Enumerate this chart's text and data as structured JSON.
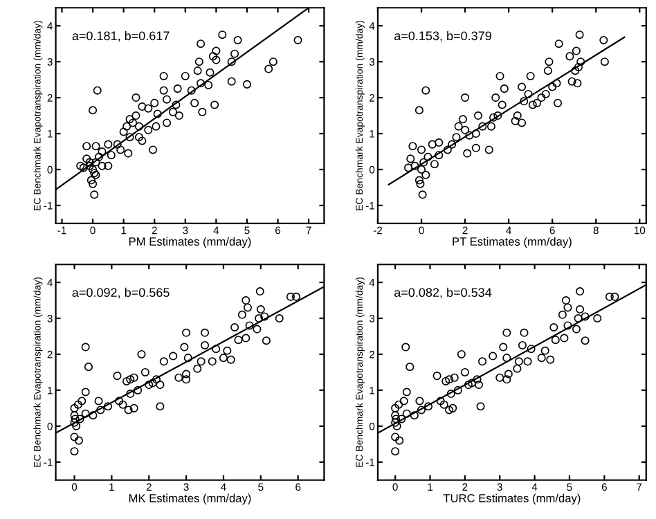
{
  "chart_data": [
    {
      "type": "scatter",
      "xlabel": "PM Estimates (mm/day)",
      "ylabel": "EC Benchmark Evapotranspiration (mm/day)",
      "annotations": [
        "a=0.181, b=0.617"
      ],
      "xlim": [
        -1.2,
        7.5
      ],
      "ylim": [
        -1.5,
        4.5
      ],
      "xticks": [
        -1,
        0,
        1,
        2,
        3,
        4,
        5,
        6,
        7
      ],
      "yticks": [
        -1,
        0,
        1,
        2,
        3,
        4
      ],
      "grid": false,
      "series": [
        {
          "color": "#000000",
          "marker": "circle",
          "x": [
            6.65,
            5.85,
            5.7,
            5.0,
            4.5,
            4.7,
            4.6,
            4.5,
            4.2,
            4.0,
            4.0,
            3.9,
            3.95,
            3.5,
            3.45,
            3.4,
            3.5,
            3.8,
            3.75,
            3.55,
            3.0,
            3.2,
            3.3,
            2.75,
            2.3,
            2.3,
            2.4,
            2.7,
            2.6,
            2.8,
            2.0,
            2.1,
            1.95,
            2.05,
            2.4,
            1.8,
            1.6,
            1.4,
            1.4,
            1.5,
            1.3,
            1.2,
            1.1,
            1.0,
            1.15,
            1.2,
            1.5,
            1.6,
            1.8,
            0.8,
            0.9,
            0.5,
            0.5,
            0.6,
            0.3,
            0.15,
            0.0,
            0.05,
            0.0,
            -0.05,
            0.1,
            -0.2,
            -0.2,
            -0.3,
            -0.1,
            0.0,
            0.1,
            -0.1,
            0.2,
            0.05,
            -0.4,
            0.1,
            0.3
          ],
          "values": [
            3.6,
            3.0,
            2.8,
            2.37,
            2.45,
            3.6,
            3.22,
            3.0,
            3.75,
            3.3,
            3.05,
            3.15,
            1.8,
            3.5,
            3.0,
            2.75,
            2.4,
            2.7,
            2.35,
            1.6,
            2.6,
            2.2,
            1.85,
            2.25,
            2.6,
            2.2,
            1.95,
            1.8,
            1.6,
            1.5,
            1.85,
            1.55,
            0.55,
            1.2,
            1.3,
            1.7,
            1.75,
            1.5,
            2.0,
            1.2,
            1.3,
            1.4,
            1.2,
            1.05,
            0.45,
            0.9,
            0.9,
            0.8,
            1.1,
            0.7,
            0.55,
            0.7,
            0.1,
            0.4,
            0.5,
            2.2,
            1.65,
            -0.7,
            -0.4,
            -0.3,
            0.65,
            0.65,
            0.3,
            0.05,
            0.1,
            0.0,
            0.2,
            0.2,
            0.35,
            -0.1,
            0.1,
            -0.15,
            0.1
          ]
        },
        {
          "type": "line",
          "color": "#000000",
          "x": [
            -1.2,
            7.0
          ],
          "values": [
            -0.56,
            4.5
          ]
        }
      ]
    },
    {
      "type": "scatter",
      "xlabel": "PT Estimates (mm/day)",
      "ylabel": "EC Benchmark Evapotranspiration (mm/day)",
      "annotations": [
        "a=0.153, b=0.379"
      ],
      "xlim": [
        -2,
        10.3
      ],
      "ylim": [
        -1.5,
        4.5
      ],
      "xticks": [
        -2,
        0,
        2,
        4,
        6,
        8,
        10
      ],
      "yticks": [
        -1,
        0,
        1,
        2,
        3,
        4
      ],
      "grid": false,
      "series": [
        {
          "color": "#000000",
          "marker": "circle",
          "x": [
            8.35,
            8.4,
            7.25,
            7.1,
            7.2,
            7.3,
            7.05,
            6.9,
            7.15,
            6.8,
            6.3,
            6.2,
            6.25,
            5.85,
            5.8,
            5.7,
            6.0,
            5.0,
            4.6,
            4.9,
            5.1,
            5.5,
            5.3,
            4.6,
            4.4,
            4.3,
            4.7,
            3.6,
            3.8,
            3.4,
            3.7,
            3.5,
            3.3,
            3.2,
            3.1,
            2.6,
            2.8,
            2.5,
            2.0,
            1.9,
            2.1,
            2.0,
            1.7,
            1.6,
            2.2,
            2.5,
            1.4,
            1.2,
            0.8,
            0.5,
            0.8,
            0.6,
            0.2,
            -0.1,
            0.05,
            -0.05,
            -0.1,
            -0.4,
            0.0,
            -0.5,
            -0.3,
            0.0,
            0.1,
            -0.6,
            0.2,
            0.3
          ],
          "values": [
            3.6,
            3.0,
            3.75,
            3.3,
            2.85,
            3.0,
            2.75,
            2.45,
            2.4,
            3.15,
            3.5,
            2.4,
            1.85,
            3.0,
            2.75,
            2.1,
            2.3,
            2.6,
            2.3,
            2.1,
            1.8,
            2.0,
            1.85,
            1.3,
            1.5,
            1.35,
            1.9,
            2.6,
            2.25,
            2.0,
            1.8,
            1.5,
            1.45,
            1.2,
            0.55,
            1.5,
            1.2,
            1.0,
            2.0,
            1.4,
            0.45,
            1.1,
            1.2,
            0.9,
            0.95,
            0.6,
            0.7,
            0.55,
            0.75,
            0.7,
            0.4,
            0.15,
            2.2,
            1.65,
            -0.7,
            -0.4,
            -0.3,
            0.65,
            0.55,
            0.3,
            0.1,
            0.0,
            0.2,
            0.05,
            -0.15,
            0.35
          ]
        },
        {
          "type": "line",
          "color": "#000000",
          "x": [
            -1.5,
            9.3
          ],
          "values": [
            -0.42,
            3.68
          ]
        }
      ]
    },
    {
      "type": "scatter",
      "xlabel": "MK Estimates (mm/day)",
      "ylabel": "EC Benchmark Evapotranspiration (mm/day)",
      "annotations": [
        "a=0.092, b=0.565"
      ],
      "xlim": [
        -0.5,
        6.7
      ],
      "ylim": [
        -1.5,
        4.5
      ],
      "xticks": [
        0,
        1,
        2,
        3,
        4,
        5,
        6
      ],
      "yticks": [
        -1,
        0,
        1,
        2,
        3,
        4
      ],
      "grid": false,
      "series": [
        {
          "color": "#000000",
          "marker": "circle",
          "x": [
            5.95,
            5.8,
            5.5,
            5.15,
            5.1,
            4.98,
            5.0,
            4.95,
            4.9,
            4.6,
            4.65,
            4.5,
            4.7,
            4.6,
            4.4,
            4.3,
            4.2,
            4.0,
            4.1,
            3.8,
            3.5,
            3.5,
            3.4,
            3.3,
            3.7,
            3.0,
            3.05,
            2.95,
            3.0,
            3.0,
            2.8,
            2.65,
            2.4,
            2.3,
            2.2,
            2.3,
            2.1,
            2.0,
            1.8,
            1.9,
            1.6,
            1.5,
            1.4,
            1.15,
            1.2,
            1.5,
            1.6,
            1.45,
            1.3,
            1.7,
            0.9,
            0.65,
            0.7,
            0.5,
            0.3,
            0.38,
            0.3,
            0.2,
            0.3,
            0.15,
            0.0,
            0.12,
            0.0,
            0.0,
            0.0,
            0.0,
            0.05,
            0.02,
            0.1
          ],
          "values": [
            3.6,
            3.6,
            3.0,
            2.38,
            3.05,
            3.75,
            3.25,
            3.0,
            2.7,
            3.5,
            3.3,
            3.1,
            2.8,
            2.45,
            2.4,
            2.75,
            1.85,
            1.9,
            2.1,
            2.15,
            2.6,
            2.25,
            1.8,
            1.6,
            1.8,
            2.6,
            1.9,
            2.2,
            1.3,
            1.45,
            1.35,
            1.95,
            1.8,
            0.55,
            1.3,
            1.15,
            1.2,
            1.15,
            2.0,
            1.5,
            1.35,
            1.3,
            1.25,
            1.4,
            0.7,
            0.9,
            0.5,
            0.45,
            0.6,
            1.0,
            0.55,
            0.7,
            0.45,
            0.3,
            2.2,
            1.65,
            0.95,
            0.7,
            0.35,
            0.2,
            -0.7,
            -0.4,
            -0.3,
            0.5,
            0.3,
            0.1,
            0.0,
            0.2,
            0.6
          ]
        },
        {
          "type": "line",
          "color": "#000000",
          "x": [
            -0.5,
            6.7
          ],
          "values": [
            -0.19,
            3.88
          ]
        }
      ]
    },
    {
      "type": "scatter",
      "xlabel": "TURC Estimates (mm/day)",
      "ylabel": "EC Benchmark Evapotranspiration (mm/day)",
      "annotations": [
        "a=0.082, b=0.534"
      ],
      "xlim": [
        -0.5,
        7.2
      ],
      "ylim": [
        -1.5,
        4.5
      ],
      "xticks": [
        0,
        1,
        2,
        3,
        4,
        5,
        6,
        7
      ],
      "yticks": [
        -1,
        0,
        1,
        2,
        3,
        4
      ],
      "grid": false,
      "series": [
        {
          "color": "#000000",
          "marker": "circle",
          "x": [
            6.3,
            6.15,
            5.8,
            5.45,
            5.45,
            5.3,
            5.3,
            5.25,
            5.2,
            4.9,
            4.95,
            4.8,
            4.95,
            4.85,
            4.6,
            4.55,
            4.45,
            4.2,
            4.3,
            3.9,
            3.7,
            3.65,
            3.55,
            3.5,
            3.8,
            3.2,
            3.2,
            3.1,
            3.2,
            3.25,
            3.0,
            2.8,
            2.5,
            2.45,
            2.35,
            2.4,
            2.2,
            2.1,
            1.9,
            2.0,
            1.7,
            1.55,
            1.45,
            1.2,
            1.3,
            1.6,
            1.65,
            1.55,
            1.4,
            1.8,
            0.95,
            0.7,
            0.75,
            0.55,
            0.3,
            0.42,
            0.33,
            0.25,
            0.33,
            0.18,
            0.0,
            0.12,
            0.0,
            0.0,
            0.0,
            0.0,
            0.05,
            0.02,
            0.1
          ],
          "values": [
            3.6,
            3.6,
            3.0,
            2.38,
            3.05,
            3.75,
            3.25,
            3.0,
            2.7,
            3.5,
            3.3,
            3.1,
            2.8,
            2.45,
            2.4,
            2.75,
            1.85,
            1.9,
            2.1,
            2.15,
            2.6,
            2.25,
            1.8,
            1.6,
            1.8,
            2.6,
            1.9,
            2.2,
            1.3,
            1.45,
            1.35,
            1.95,
            1.8,
            0.55,
            1.3,
            1.15,
            1.2,
            1.15,
            2.0,
            1.5,
            1.35,
            1.3,
            1.25,
            1.4,
            0.7,
            0.9,
            0.5,
            0.45,
            0.6,
            1.0,
            0.55,
            0.7,
            0.45,
            0.3,
            2.2,
            1.65,
            0.95,
            0.7,
            0.35,
            0.2,
            -0.7,
            -0.4,
            -0.3,
            0.5,
            0.3,
            0.1,
            0.0,
            0.2,
            0.6
          ]
        },
        {
          "type": "line",
          "color": "#000000",
          "x": [
            -0.5,
            7.2
          ],
          "values": [
            -0.19,
            3.93
          ]
        }
      ]
    }
  ]
}
